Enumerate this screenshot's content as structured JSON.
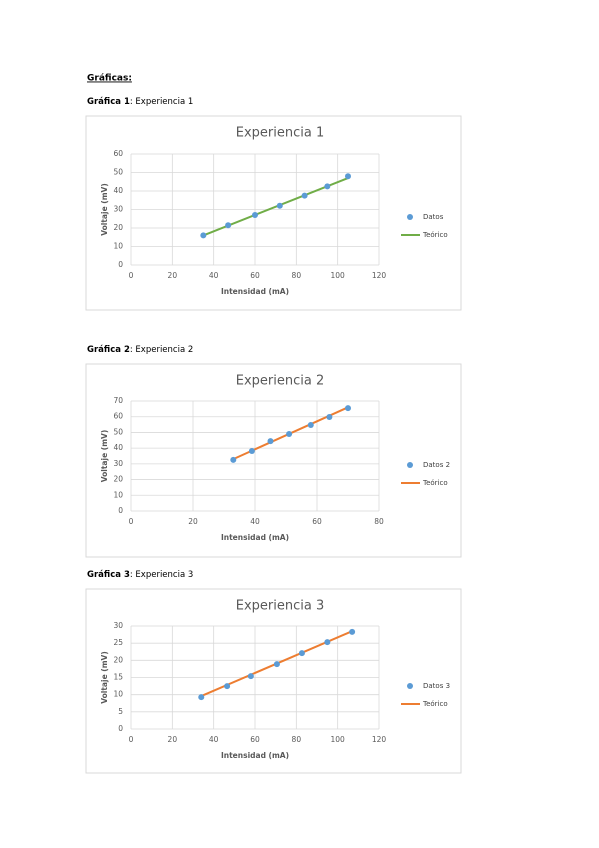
{
  "heading": "Gráficas:",
  "captions": [
    {
      "bold": "Gráfica 1",
      "text": ": Experiencia 1"
    },
    {
      "bold": "Gráfica 2",
      "text": ": Experiencia 2"
    },
    {
      "bold": "Gráfica 3",
      "text": ": Experiencia 3"
    }
  ],
  "chart_data": [
    {
      "type": "scatter",
      "title": "Experiencia 1",
      "xlabel": "Intensidad (mA)",
      "ylabel": "Voltaje (mV)",
      "xlim": [
        0,
        120
      ],
      "xticks": [
        0,
        20,
        40,
        60,
        80,
        100,
        120
      ],
      "ylim": [
        0,
        60
      ],
      "yticks": [
        0,
        10,
        20,
        30,
        40,
        50,
        60
      ],
      "grid": true,
      "legend": "right",
      "series": [
        {
          "name": "Datos",
          "type": "scatter",
          "color": "#5b9bd5",
          "x": [
            35,
            47,
            60,
            72,
            84,
            95,
            105
          ],
          "values": [
            16,
            21.5,
            27,
            32,
            37.5,
            42.5,
            48
          ]
        },
        {
          "name": "Teórico",
          "type": "line",
          "color": "#70ad47",
          "x": [
            35,
            105
          ],
          "values": [
            16,
            47
          ]
        }
      ]
    },
    {
      "type": "scatter",
      "title": "Experiencia 2",
      "xlabel": "Intensidad (mA)",
      "ylabel": "Voltaje (mV)",
      "xlim": [
        0,
        80
      ],
      "xticks": [
        0,
        20,
        40,
        60,
        80
      ],
      "ylim": [
        0,
        70
      ],
      "yticks": [
        0,
        10,
        20,
        30,
        40,
        50,
        60,
        70
      ],
      "grid": true,
      "legend": "right",
      "series": [
        {
          "name": "Datos 2",
          "type": "scatter",
          "color": "#5b9bd5",
          "x": [
            33,
            39,
            45,
            51,
            58,
            64,
            70
          ],
          "values": [
            32.5,
            38.2,
            44.5,
            49,
            54.7,
            59.8,
            65.5
          ]
        },
        {
          "name": "Teórico",
          "type": "line",
          "color": "#ed7d31",
          "x": [
            33,
            70
          ],
          "values": [
            33,
            66
          ]
        }
      ]
    },
    {
      "type": "scatter",
      "title": "Experiencia 3",
      "xlabel": "Intensidad (mA)",
      "ylabel": "Voltaje (mV)",
      "xlim": [
        0,
        120
      ],
      "xticks": [
        0,
        20,
        40,
        60,
        80,
        100,
        120
      ],
      "ylim": [
        0,
        30
      ],
      "yticks": [
        0,
        5,
        10,
        15,
        20,
        25,
        30
      ],
      "grid": true,
      "legend": "right",
      "series": [
        {
          "name": "Datos 3",
          "type": "scatter",
          "color": "#5b9bd5",
          "x": [
            34,
            46.5,
            58,
            70.6,
            82.7,
            95,
            107
          ],
          "values": [
            9.3,
            12.5,
            15.4,
            18.9,
            22.1,
            25.3,
            28.3
          ]
        },
        {
          "name": "Teórico",
          "type": "line",
          "color": "#ed7d31",
          "x": [
            34,
            107
          ],
          "values": [
            9.6,
            28.5
          ]
        }
      ]
    }
  ]
}
